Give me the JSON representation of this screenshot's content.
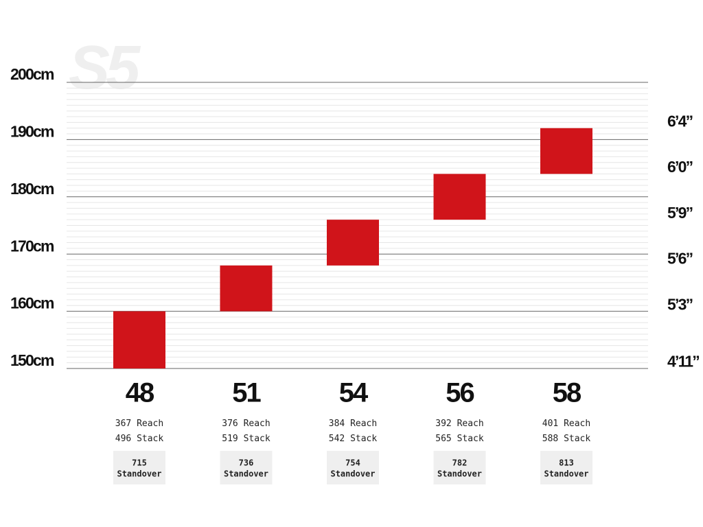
{
  "chart_data": {
    "type": "range_bar",
    "watermark": "S5",
    "categories": [
      "48",
      "51",
      "54",
      "56",
      "58"
    ],
    "low": [
      150,
      160,
      168,
      176,
      184
    ],
    "high": [
      160,
      168,
      176,
      184,
      192
    ],
    "color": "#d0141a",
    "ylim": [
      150,
      200
    ],
    "yticks": [
      {
        "value": 150,
        "label": "150cm"
      },
      {
        "value": 160,
        "label": "160cm"
      },
      {
        "value": 170,
        "label": "170cm"
      },
      {
        "value": 180,
        "label": "180cm"
      },
      {
        "value": 190,
        "label": "190cm"
      },
      {
        "value": 200,
        "label": "200cm"
      }
    ],
    "y2lim": [
      150,
      200
    ],
    "y2ticks": [
      {
        "value": 151,
        "label": "4’11”"
      },
      {
        "value": 161,
        "label": "5’3”"
      },
      {
        "value": 169,
        "label": "5’6”"
      },
      {
        "value": 177,
        "label": "5’9”"
      },
      {
        "value": 185,
        "label": "6’0”"
      },
      {
        "value": 193,
        "label": "6’4”"
      }
    ],
    "grid": true,
    "minor_grid": true,
    "reach": {
      "label": "Reach",
      "values": [
        367,
        376,
        384,
        392,
        401
      ]
    },
    "stack": {
      "label": "Stack",
      "values": [
        496,
        519,
        542,
        565,
        588
      ]
    },
    "standover": {
      "label": "Standover",
      "values": [
        715,
        736,
        754,
        782,
        813
      ]
    }
  }
}
